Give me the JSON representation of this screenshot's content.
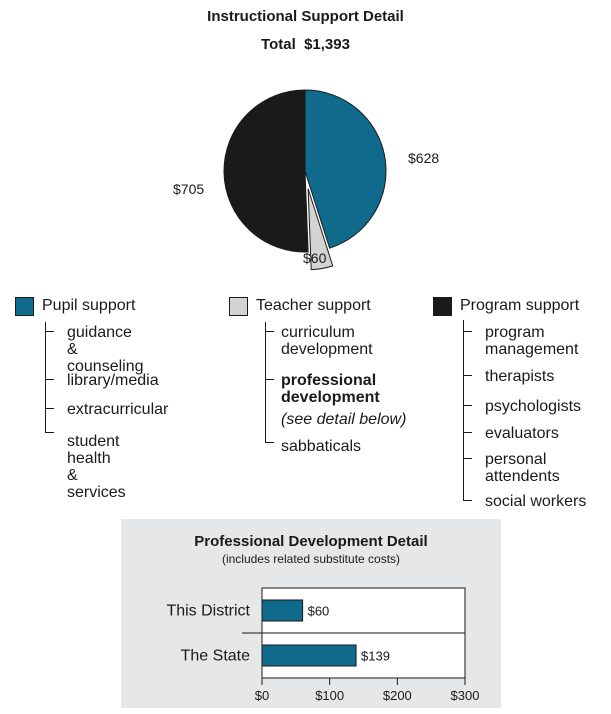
{
  "pie": {
    "title": "Instructional Support Detail",
    "total_line": "Total  $1,393"
  },
  "legend": {
    "pupil": {
      "name": "Pupil support",
      "color": "#0f6a8b",
      "items": [
        "guidance &\ncounseling",
        "library/media",
        "extracurricular",
        "student health\n& services"
      ]
    },
    "teacher": {
      "name": "Teacher support",
      "color": "#d1d3d4",
      "items": [
        "curriculum\ndevelopment",
        "professional\ndevelopment",
        "sabbaticals"
      ],
      "note": "(see detail below)"
    },
    "program": {
      "name": "Program support",
      "color": "#1a1a1a",
      "items": [
        "program\nmanagement",
        "therapists",
        "psychologists",
        "evaluators",
        "personal\nattendents",
        "social workers"
      ]
    }
  },
  "pd": {
    "title": "Professional Development Detail",
    "subtitle": "(includes related substitute costs)",
    "bar_color": "#0f6a8b"
  },
  "chart_data": [
    {
      "type": "pie",
      "title": "Instructional Support Detail",
      "subtitle": "Total  $1,393",
      "slices": [
        {
          "name": "Pupil support",
          "value": 628,
          "label": "$628",
          "color": "#0f6a8b"
        },
        {
          "name": "Teacher support",
          "value": 60,
          "label": "$60",
          "color": "#d1d3d4"
        },
        {
          "name": "Program support",
          "value": 705,
          "label": "$705",
          "color": "#1a1a1a"
        }
      ]
    },
    {
      "type": "bar",
      "orientation": "horizontal",
      "title": "Professional Development Detail",
      "subtitle": "(includes related substitute costs)",
      "categories": [
        "This District",
        "The State"
      ],
      "values": [
        60,
        139
      ],
      "value_labels": [
        "$60",
        "$139"
      ],
      "xlim": [
        0,
        300
      ],
      "xticks": [
        0,
        100,
        200,
        300
      ],
      "xtick_labels": [
        "$0",
        "$100",
        "$200",
        "$300"
      ]
    }
  ]
}
